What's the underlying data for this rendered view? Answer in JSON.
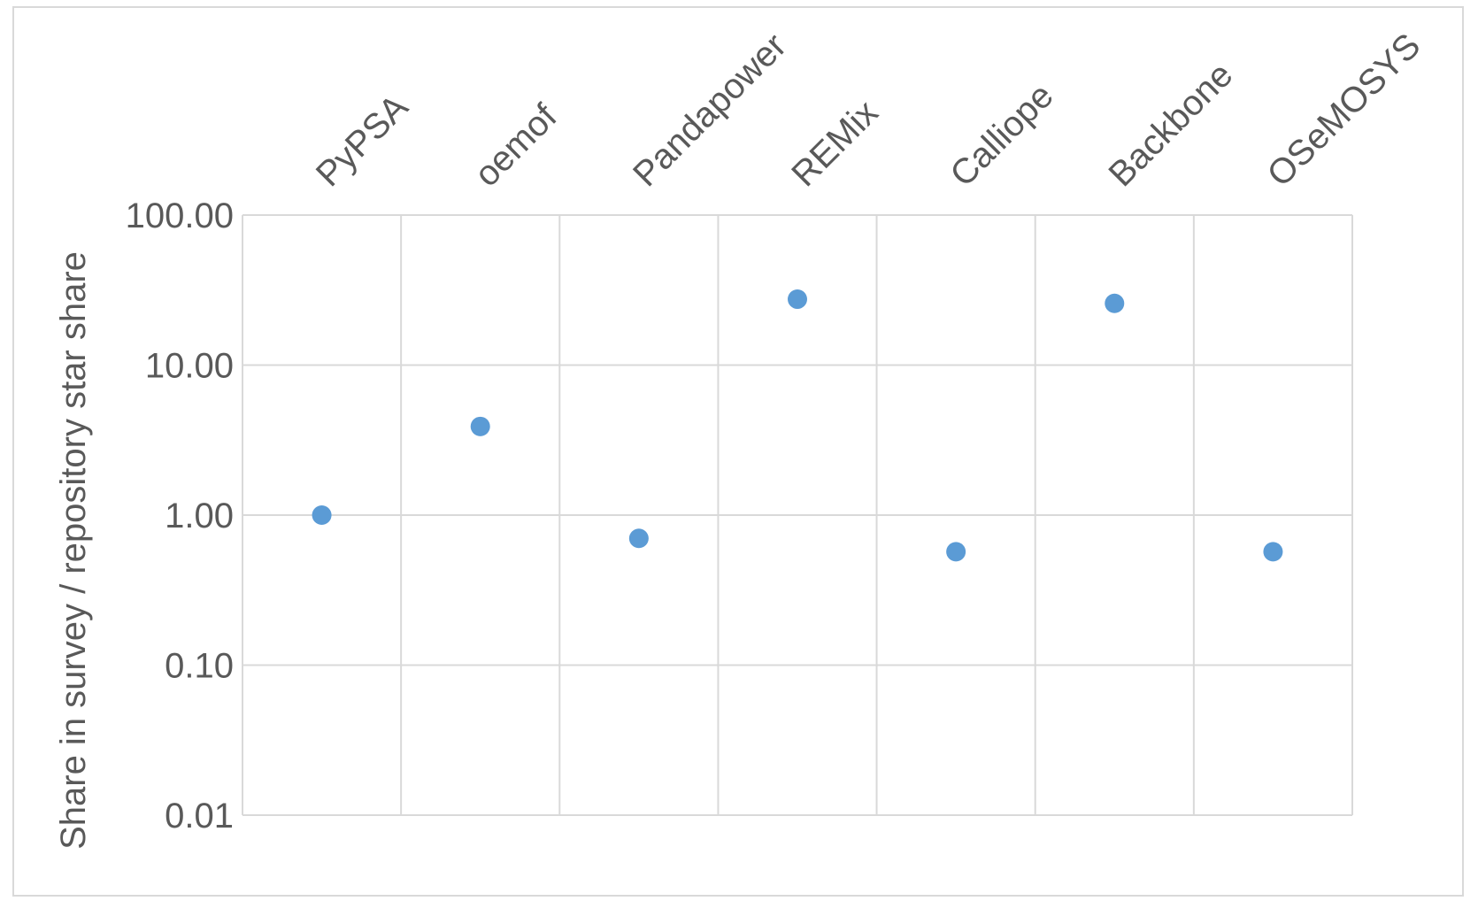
{
  "chart_data": {
    "type": "scatter",
    "title": "",
    "xlabel": "",
    "ylabel": "Share in survey / repository star share",
    "yscale": "log",
    "ylim": [
      0.01,
      100
    ],
    "yticks": [
      100,
      10,
      1,
      0.1,
      0.01
    ],
    "ytick_labels": [
      "100.00",
      "10.00",
      "1.00",
      "0.10",
      "0.01"
    ],
    "categories": [
      "PyPSA",
      "oemof",
      "Pandapower",
      "REMix",
      "Calliope",
      "Backbone",
      "OSeMOSYS"
    ],
    "series": [
      {
        "values": [
          1.0,
          3.9,
          0.7,
          27.5,
          0.57,
          25.8,
          0.57
        ],
        "color": "#5b9bd5"
      }
    ],
    "grid": true,
    "legend": "none",
    "axis_position": "top",
    "colors": {
      "grid": "#d9d9d9",
      "text": "#595959",
      "marker": "#5b9bd5",
      "border": "#d9d9d9"
    }
  }
}
